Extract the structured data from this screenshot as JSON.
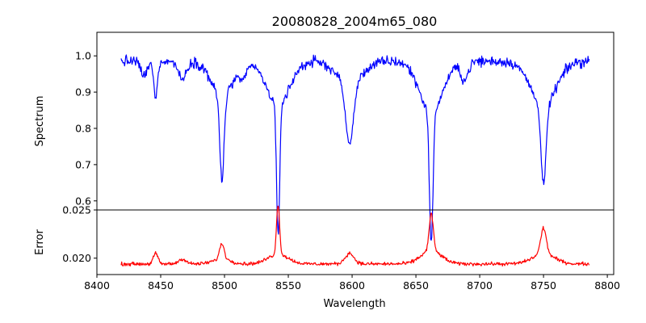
{
  "chart_data": {
    "type": "line",
    "title": "20080828_2004m65_080",
    "xlabel": "Wavelength",
    "xlim": [
      8400,
      8805
    ],
    "xticks": [
      8400,
      8450,
      8500,
      8550,
      8600,
      8650,
      8700,
      8750,
      8800
    ],
    "x_range_data": [
      8419,
      8786
    ],
    "panels": [
      {
        "id": "spectrum",
        "ylabel": "Spectrum",
        "ylim": [
          0.575,
          1.065
        ],
        "yticks": [
          0.6,
          0.7,
          0.8,
          0.9,
          1.0
        ],
        "ytick_labels": [
          "0.6",
          "0.7",
          "0.8",
          "0.9",
          "1.0"
        ],
        "color": "#0000ff",
        "continuum": 0.985,
        "noise_amplitude": 0.012,
        "lines": [
          {
            "center": 8446,
            "depth": 0.1,
            "width": 1.5
          },
          {
            "center": 8437,
            "depth": 0.04,
            "width": 2.5
          },
          {
            "center": 8467,
            "depth": 0.05,
            "width": 3
          },
          {
            "center": 8498,
            "depth": 0.23,
            "width": 1.6
          },
          {
            "center": 8498,
            "depth": 0.1,
            "width": 8
          },
          {
            "center": 8542,
            "depth": 0.36,
            "width": 1.2
          },
          {
            "center": 8542,
            "depth": 0.12,
            "width": 9
          },
          {
            "center": 8514,
            "depth": 0.04,
            "width": 3
          },
          {
            "center": 8598,
            "depth": 0.17,
            "width": 3
          },
          {
            "center": 8598,
            "depth": 0.06,
            "width": 10
          },
          {
            "center": 8662,
            "depth": 0.36,
            "width": 1.4
          },
          {
            "center": 8662,
            "depth": 0.14,
            "width": 9
          },
          {
            "center": 8688,
            "depth": 0.05,
            "width": 3
          },
          {
            "center": 8750,
            "depth": 0.22,
            "width": 2
          },
          {
            "center": 8750,
            "depth": 0.12,
            "width": 10
          }
        ]
      },
      {
        "id": "error",
        "ylabel": "Error",
        "ylim": [
          0.0183,
          0.025
        ],
        "yticks": [
          0.02,
          0.025
        ],
        "ytick_labels": [
          "0.020",
          "0.025"
        ],
        "color": "#ff0000",
        "continuum": 0.0194,
        "noise_amplitude": 0.00018,
        "lines": [
          {
            "center": 8446,
            "height": 0.0011,
            "width": 1.8
          },
          {
            "center": 8467,
            "height": 0.0005,
            "width": 3
          },
          {
            "center": 8498,
            "height": 0.0016,
            "width": 1.8
          },
          {
            "center": 8498,
            "height": 0.0005,
            "width": 7
          },
          {
            "center": 8542,
            "height": 0.0051,
            "width": 1.2
          },
          {
            "center": 8542,
            "height": 0.001,
            "width": 8
          },
          {
            "center": 8598,
            "height": 0.0011,
            "width": 3.5
          },
          {
            "center": 8662,
            "height": 0.0038,
            "width": 1.6
          },
          {
            "center": 8662,
            "height": 0.0014,
            "width": 8
          },
          {
            "center": 8750,
            "height": 0.0027,
            "width": 2.2
          },
          {
            "center": 8750,
            "height": 0.001,
            "width": 9
          }
        ]
      }
    ]
  }
}
